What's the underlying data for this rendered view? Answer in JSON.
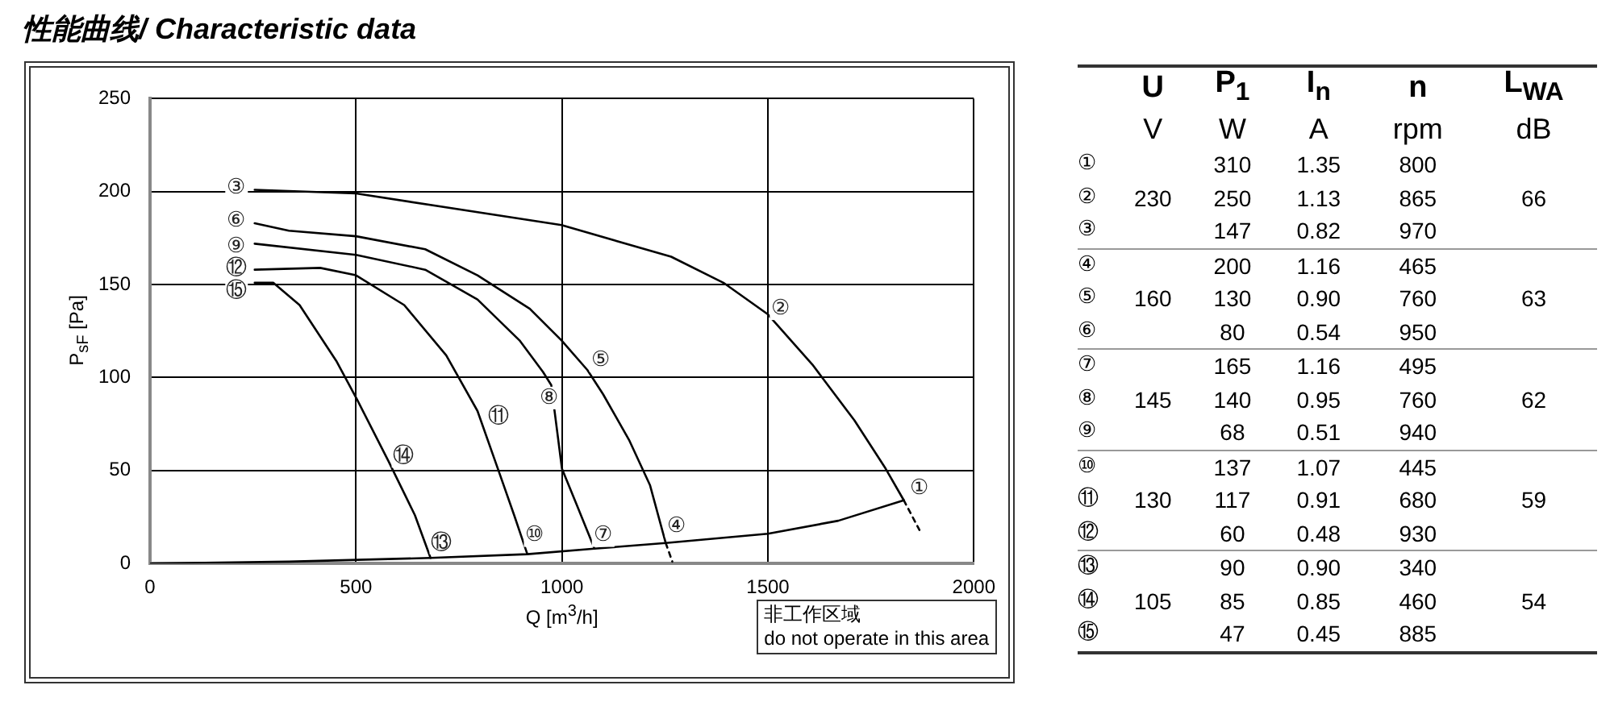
{
  "chart_data": [
    {
      "type": "line",
      "title": "性能曲线/ Characteristic data",
      "xlabel": "Q [m$^{3}$/h]",
      "ylabel": "P$_{sF}$ [Pa]",
      "xlim": [
        0,
        2000
      ],
      "xticks": [
        0,
        500,
        1000,
        1500,
        2000
      ],
      "ylim": [
        0,
        250
      ],
      "yticks": [
        0,
        50,
        100,
        150,
        200,
        250
      ],
      "grid": true,
      "legend": false,
      "marker": "none",
      "line_style": "solid",
      "series": [
        {
          "color": "#000000",
          "x": [
            254,
            500,
            999,
            1265,
            1392,
            1500,
            1608,
            1710,
            1786,
            1830
          ],
          "values": [
            201,
            199,
            182,
            165,
            151,
            134,
            107,
            77,
            51,
            34
          ]
        },
        {
          "color": "#000000",
          "x": [
            254,
            337,
            500,
            668,
            795,
            922,
            999,
            1062,
            1100,
            1164,
            1214,
            1252
          ],
          "values": [
            183,
            179,
            176,
            169,
            155,
            137,
            120,
            104,
            91,
            66,
            42,
            11
          ]
        },
        {
          "color": "#000000",
          "x": [
            254,
            500,
            668,
            795,
            897,
            954,
            974,
            1000,
            1037,
            1079
          ],
          "values": [
            172,
            166,
            158,
            142,
            120,
            103,
            96,
            51,
            31,
            8
          ]
        },
        {
          "color": "#000000",
          "x": [
            254,
            413,
            500,
            617,
            719,
            795,
            846,
            884,
            916
          ],
          "values": [
            158,
            159,
            155,
            139,
            112,
            82,
            50,
            26,
            5
          ]
        },
        {
          "color": "#000000",
          "x": [
            254,
            299,
            363,
            452,
            503,
            579,
            643,
            681
          ],
          "values": [
            151,
            151,
            139,
            109,
            88,
            55,
            26,
            3
          ]
        },
        {
          "color": "#000000",
          "x": [
            0,
            337,
            681,
            916,
            1079,
            1252,
            1500,
            1671,
            1830
          ],
          "values": [
            0,
            1,
            3,
            5,
            8,
            11,
            16,
            23,
            34
          ]
        },
        {
          "color": "#000000",
          "line_style": "dashed",
          "x": [
            1830,
            1868
          ],
          "values": [
            34,
            18
          ]
        },
        {
          "color": "#000000",
          "line_style": "dashed",
          "x": [
            1252,
            1268
          ],
          "values": [
            11,
            1
          ]
        }
      ],
      "annotations": [
        {
          "text": "①",
          "x": 1868,
          "y": 40.5
        },
        {
          "text": "②",
          "x": 1532,
          "y": 137
        },
        {
          "text": "③",
          "x": 210,
          "y": 202
        },
        {
          "text": "④",
          "x": 1278,
          "y": 20
        },
        {
          "text": "⑤",
          "x": 1094,
          "y": 109
        },
        {
          "text": "⑥",
          "x": 210,
          "y": 184
        },
        {
          "text": "⑦",
          "x": 1100,
          "y": 15
        },
        {
          "text": "⑧",
          "x": 970,
          "y": 89
        },
        {
          "text": "⑨",
          "x": 210,
          "y": 170.5
        },
        {
          "text": "⑩",
          "x": 935,
          "y": 15
        },
        {
          "text": "⑪",
          "x": 846,
          "y": 79
        },
        {
          "text": "⑫",
          "x": 210,
          "y": 158.6
        },
        {
          "text": "⑬",
          "x": 706,
          "y": 11
        },
        {
          "text": "⑭",
          "x": 614,
          "y": 57.6
        },
        {
          "text": "⑮",
          "x": 210,
          "y": 146.5
        },
        "非工作区域",
        "do not operate in this area"
      ]
    },
    {
      "type": "other",
      "categories": [
        "U",
        "P$_{1}$",
        "I$_{n}$",
        "n",
        "L$_{WA}$"
      ],
      "y_categories": [
        null,
        "①",
        "②",
        "③",
        "④",
        "⑤",
        "⑥",
        "⑦",
        "⑧",
        "⑨",
        "⑩",
        "⑪",
        "⑫",
        "⑬",
        "⑭",
        "⑮"
      ],
      "cell_labels": [
        [
          "V",
          "W",
          "A",
          "rpm",
          "dB"
        ],
        [
          null,
          "310",
          "1.35",
          "800",
          null
        ],
        [
          "230",
          "250",
          "1.13",
          "865",
          "66"
        ],
        [
          null,
          "147",
          "0.82",
          "970",
          null
        ],
        [
          null,
          "200",
          "1.16",
          "465",
          null
        ],
        [
          "160",
          "130",
          "0.90",
          "760",
          "63"
        ],
        [
          null,
          "80",
          "0.54",
          "950",
          null
        ],
        [
          null,
          "165",
          "1.16",
          "495",
          null
        ],
        [
          "145",
          "140",
          "0.95",
          "760",
          "62"
        ],
        [
          null,
          "68",
          "0.51",
          "940",
          null
        ],
        [
          null,
          "137",
          "1.07",
          "445",
          null
        ],
        [
          "130",
          "117",
          "0.91",
          "680",
          "59"
        ],
        [
          null,
          "60",
          "0.48",
          "930",
          null
        ],
        [
          null,
          "90",
          "0.90",
          "340",
          null
        ],
        [
          "105",
          "85",
          "0.85",
          "460",
          "54"
        ],
        [
          null,
          "47",
          "0.45",
          "885",
          null
        ]
      ]
    }
  ]
}
